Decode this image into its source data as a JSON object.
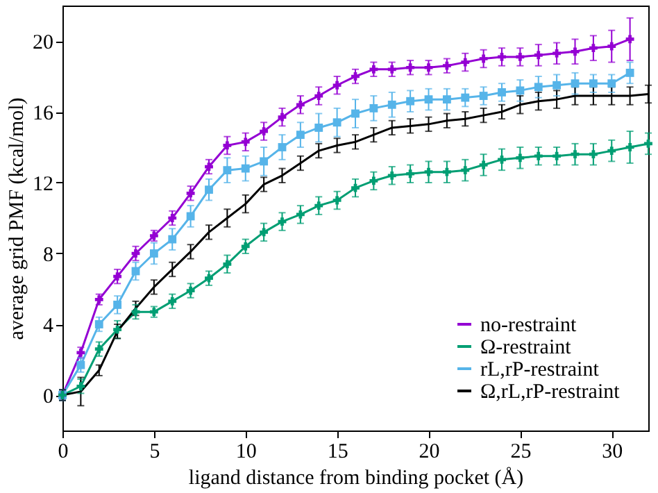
{
  "chart_data": {
    "type": "line",
    "xlabel": "ligand distance from binding pocket (Å)",
    "ylabel": "average grid PMF (kcal/mol)",
    "x": [
      0,
      1,
      2,
      3,
      4,
      5,
      6,
      7,
      8,
      9,
      10,
      11,
      12,
      13,
      14,
      15,
      16,
      17,
      18,
      19,
      20,
      21,
      22,
      23,
      24,
      25,
      26,
      27,
      28,
      29,
      30,
      31,
      32
    ],
    "xlim": [
      0,
      32
    ],
    "xticks": [
      0,
      5,
      10,
      15,
      20,
      25,
      30
    ],
    "ylim": [
      -2,
      22
    ],
    "yticks": [
      0,
      4,
      8,
      12,
      16,
      20
    ],
    "legend": "bottom right",
    "grid": false,
    "line_style": "solid",
    "series": [
      {
        "name": "no-restraint",
        "color": "#9400d3",
        "marker": "cross",
        "values": [
          0,
          2.4,
          5.4,
          6.7,
          8.0,
          9.0,
          10.0,
          11.4,
          12.9,
          14.1,
          14.3,
          14.9,
          15.7,
          16.4,
          16.9,
          17.5,
          18.0,
          18.4,
          18.4,
          18.5,
          18.5,
          18.6,
          18.8,
          19.0,
          19.1,
          19.1,
          19.2,
          19.3,
          19.4,
          19.6,
          19.7,
          20.1,
          null
        ],
        "errors": [
          0.3,
          0.3,
          0.3,
          0.4,
          0.4,
          0.3,
          0.4,
          0.4,
          0.4,
          0.5,
          0.5,
          0.5,
          0.5,
          0.5,
          0.5,
          0.5,
          0.4,
          0.4,
          0.4,
          0.4,
          0.4,
          0.4,
          0.5,
          0.5,
          0.5,
          0.5,
          0.6,
          0.6,
          0.7,
          0.7,
          0.9,
          1.2,
          null
        ]
      },
      {
        "name": "Ω-restraint",
        "color": "#009e73",
        "marker": "cross",
        "values": [
          0,
          0.5,
          2.6,
          3.7,
          4.7,
          4.7,
          5.3,
          5.9,
          6.6,
          7.4,
          8.4,
          9.2,
          9.8,
          10.2,
          10.7,
          11.0,
          11.7,
          12.1,
          12.4,
          12.5,
          12.6,
          12.6,
          12.7,
          13.0,
          13.3,
          13.4,
          13.5,
          13.5,
          13.6,
          13.6,
          13.8,
          14.0,
          14.2
        ],
        "errors": [
          0.3,
          0.4,
          0.4,
          0.5,
          0.4,
          0.3,
          0.4,
          0.4,
          0.4,
          0.5,
          0.4,
          0.5,
          0.5,
          0.5,
          0.5,
          0.5,
          0.5,
          0.5,
          0.5,
          0.5,
          0.6,
          0.6,
          0.6,
          0.6,
          0.6,
          0.6,
          0.5,
          0.5,
          0.6,
          0.6,
          0.6,
          0.9,
          0.6
        ]
      },
      {
        "name": "rL,rP-restraint",
        "color": "#56b4e9",
        "marker": "square",
        "values": [
          0,
          1.7,
          4.0,
          5.1,
          7.0,
          8.0,
          8.8,
          10.1,
          11.6,
          12.7,
          12.8,
          13.2,
          14.0,
          14.7,
          15.1,
          15.4,
          15.9,
          16.2,
          16.4,
          16.6,
          16.7,
          16.7,
          16.8,
          16.9,
          17.1,
          17.2,
          17.4,
          17.5,
          17.6,
          17.6,
          17.6,
          18.2,
          null
        ],
        "errors": [
          0.3,
          0.4,
          0.4,
          0.5,
          0.5,
          0.6,
          0.6,
          0.6,
          0.6,
          0.7,
          0.7,
          0.8,
          0.7,
          0.7,
          0.8,
          0.8,
          0.8,
          0.7,
          0.7,
          0.6,
          0.6,
          0.6,
          0.5,
          0.5,
          0.5,
          0.6,
          0.6,
          0.6,
          0.6,
          0.5,
          0.5,
          0.6,
          null
        ]
      },
      {
        "name": "Ω,rL,rP-restraint",
        "color": "#000000",
        "marker": "none",
        "values": [
          0,
          0.2,
          1.4,
          3.6,
          4.9,
          6.1,
          7.1,
          8.1,
          9.2,
          10.0,
          10.8,
          11.9,
          12.4,
          13.1,
          13.8,
          14.1,
          14.3,
          14.7,
          15.1,
          15.2,
          15.3,
          15.5,
          15.6,
          15.8,
          16.0,
          16.4,
          16.6,
          16.7,
          16.9,
          16.9,
          16.9,
          16.9,
          17.0
        ],
        "errors": [
          0.3,
          0.8,
          0.3,
          0.4,
          0.4,
          0.4,
          0.4,
          0.4,
          0.4,
          0.5,
          0.5,
          0.4,
          0.4,
          0.4,
          0.4,
          0.4,
          0.4,
          0.4,
          0.4,
          0.4,
          0.4,
          0.4,
          0.4,
          0.4,
          0.4,
          0.5,
          0.5,
          0.5,
          0.5,
          0.5,
          0.5,
          0.5,
          0.5
        ]
      }
    ]
  }
}
